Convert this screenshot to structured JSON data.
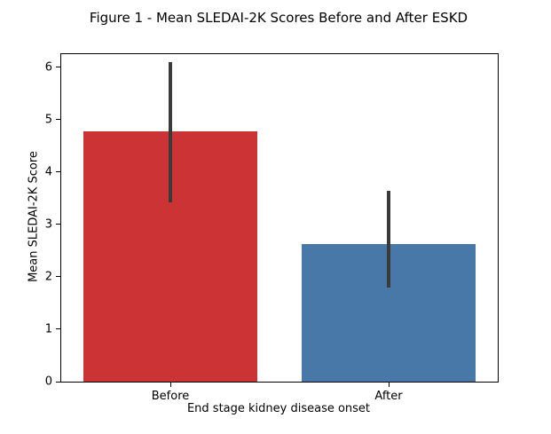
{
  "chart_data": {
    "type": "bar",
    "title": "Figure 1 - Mean SLEDAI-2K Scores Before and After ESKD",
    "xlabel": "End stage kidney disease onset",
    "ylabel": "Mean SLEDAI-2K Score",
    "categories": [
      "Before",
      "After"
    ],
    "values": [
      4.78,
      2.62
    ],
    "error_bars": [
      [
        3.42,
        6.1
      ],
      [
        1.8,
        3.65
      ]
    ],
    "bar_colors": [
      "#CB3335",
      "#4878A8"
    ],
    "errorbar_color": "#3A3A3A",
    "axis_color": "#000000",
    "ylim": [
      0,
      6.25
    ],
    "yticks": [
      0,
      1,
      2,
      3,
      4,
      5,
      6
    ],
    "grid": false,
    "legend": null,
    "background": "#FFFFFF"
  }
}
